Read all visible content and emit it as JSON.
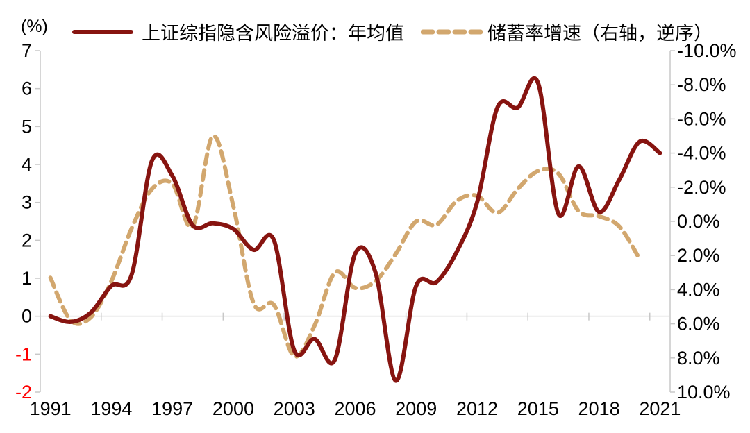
{
  "chart_data": {
    "type": "line",
    "title": "",
    "unit_label": "(%)",
    "legend_position": "top",
    "grid": "zero-line-only",
    "x": [
      1991,
      1992,
      1993,
      1994,
      1995,
      1996,
      1997,
      1998,
      1999,
      2000,
      2001,
      2002,
      2003,
      2004,
      2005,
      2006,
      2007,
      2008,
      2009,
      2010,
      2011,
      2012,
      2013,
      2014,
      2015,
      2016,
      2017,
      2018,
      2019,
      2020,
      2021
    ],
    "series": [
      {
        "name": "上证综指隐含风险溢价：年均值",
        "axis": "left",
        "style": "solid",
        "color": "#871410",
        "values": [
          0.0,
          -0.15,
          0.1,
          0.8,
          1.1,
          4.1,
          3.7,
          2.4,
          2.45,
          2.3,
          1.75,
          2.0,
          -0.9,
          -0.6,
          -1.15,
          1.65,
          1.15,
          -1.7,
          0.8,
          0.9,
          1.7,
          3.0,
          5.5,
          5.5,
          6.15,
          2.7,
          3.95,
          2.75,
          3.6,
          4.6,
          4.3
        ]
      },
      {
        "name": "储蓄率增速（右轴，逆序）",
        "axis": "right",
        "style": "dashed",
        "color": "#D2A76E",
        "values": [
          3.3,
          5.8,
          5.6,
          3.5,
          0.4,
          -1.9,
          -2.2,
          0.3,
          -5.0,
          -0.9,
          4.8,
          4.9,
          7.9,
          6.1,
          3.0,
          3.9,
          3.5,
          1.9,
          0.0,
          0.2,
          -1.2,
          -1.5,
          -0.5,
          -1.9,
          -2.95,
          -2.8,
          -0.6,
          -0.3,
          0.3,
          2.2,
          null
        ]
      }
    ],
    "left_axis": {
      "range": [
        7,
        -2
      ],
      "labels": [
        "7",
        "6",
        "5",
        "4",
        "3",
        "2",
        "1",
        "0",
        "-1",
        "-2"
      ],
      "negative_color": "#FF0000"
    },
    "right_axis": {
      "range": [
        -10,
        10
      ],
      "inverted": true,
      "labels": [
        "-10.0%",
        "-8.0%",
        "-6.0%",
        "-4.0%",
        "-2.0%",
        "0.0%",
        "2.0%",
        "4.0%",
        "6.0%",
        "8.0%",
        "10.0%"
      ]
    },
    "x_axis": {
      "labels": [
        "1991",
        "1994",
        "1997",
        "2000",
        "2003",
        "2006",
        "2009",
        "2012",
        "2015",
        "2018",
        "2021"
      ]
    }
  },
  "layout_colors": {
    "axis_line": "#c8c8c8",
    "zero_line": "#d6d6d6",
    "tick_label": "#000000",
    "negative_tick_label": "#FF0000"
  }
}
